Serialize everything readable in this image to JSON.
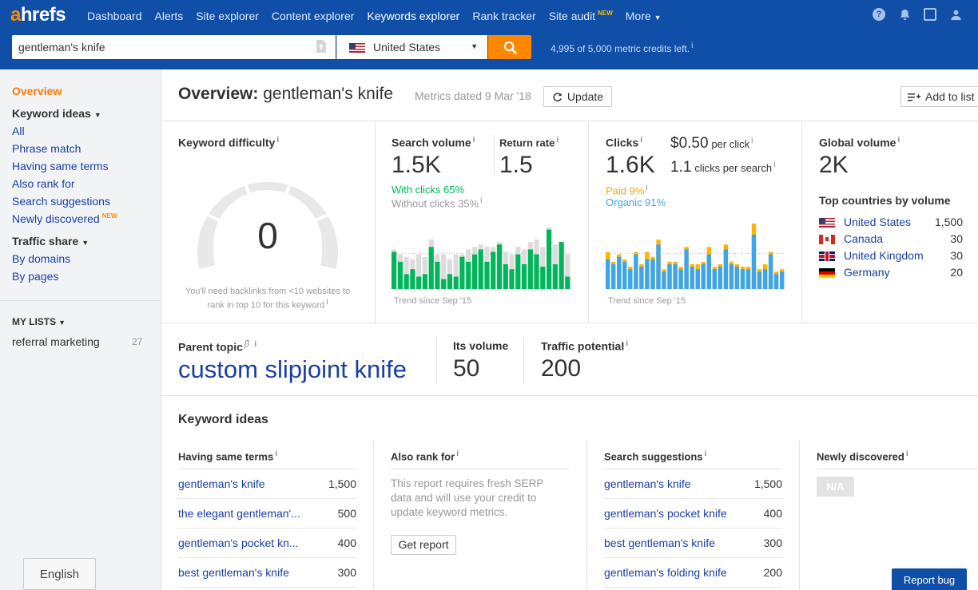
{
  "app": {
    "logo": "ahrefs"
  },
  "nav": {
    "items": [
      {
        "label": "Dashboard"
      },
      {
        "label": "Alerts"
      },
      {
        "label": "Site explorer"
      },
      {
        "label": "Content explorer"
      },
      {
        "label": "Keywords explorer",
        "active": true
      },
      {
        "label": "Rank tracker"
      },
      {
        "label": "Site audit",
        "badge": "NEW"
      },
      {
        "label": "More"
      }
    ],
    "icons": [
      "help-icon",
      "bell-icon",
      "inbox-icon",
      "user-icon"
    ]
  },
  "search": {
    "query": "gentleman's knife",
    "country": "United States",
    "credits": "4,995 of 5,000 metric credits left."
  },
  "sidebar": {
    "overview": "Overview",
    "keyword_ideas_head": "Keyword ideas",
    "keyword_ideas": [
      "All",
      "Phrase match",
      "Having same terms",
      "Also rank for",
      "Search suggestions",
      "Newly discovered"
    ],
    "new_badge": "NEW",
    "traffic_share_head": "Traffic share",
    "traffic_share": [
      "By domains",
      "By pages"
    ],
    "my_lists_head": "MY LISTS",
    "lists": [
      {
        "name": "referral marketing",
        "count": "27"
      }
    ],
    "language": "English"
  },
  "header": {
    "title_prefix": "Overview:",
    "keyword": "gentleman's knife",
    "metrics_date": "Metrics dated 9 Mar '18",
    "update_label": "Update",
    "add_to_list_label": "Add to list"
  },
  "kd": {
    "title": "Keyword difficulty",
    "value": "0",
    "note": "You'll need backlinks from <10 websites to rank in top 10 for this keyword"
  },
  "search_volume": {
    "title": "Search volume",
    "value": "1.5K",
    "return_title": "Return rate",
    "return_value": "1.5",
    "with_clicks": "With clicks 65%",
    "without_clicks": "Without clicks 35%",
    "trend_label": "Trend since Sep '15",
    "trend_with_clicks": [
      0.75,
      0.55,
      0.3,
      0.4,
      0.25,
      0.3,
      0.85,
      0.55,
      0.2,
      0.3,
      0.25,
      0.65,
      0.55,
      0.7,
      0.8,
      0.55,
      0.75,
      0.9,
      0.5,
      0.4,
      0.7,
      0.5,
      0.8,
      0.7,
      0.45,
      1.2,
      0.5,
      0.95,
      0.25
    ],
    "trend_without_clicks": [
      0.8,
      0.7,
      0.65,
      0.6,
      0.7,
      0.65,
      1.0,
      0.7,
      0.7,
      0.6,
      0.7,
      0.7,
      0.8,
      0.85,
      0.9,
      0.85,
      0.85,
      0.95,
      0.75,
      0.7,
      0.85,
      0.8,
      0.95,
      1.0,
      0.85,
      1.25,
      0.9,
      0.95,
      0.7
    ]
  },
  "clicks": {
    "title": "Clicks",
    "value": "1.6K",
    "cpc_value": "$0.50",
    "cpc_label": "per click",
    "cps_value": "1.1",
    "cps_label": "clicks per search",
    "paid": "Paid 9%",
    "organic": "Organic 91%",
    "trend_label": "Trend since Sep '15",
    "trend_organic": [
      0.6,
      0.5,
      0.65,
      0.55,
      0.4,
      0.7,
      0.45,
      0.6,
      0.6,
      0.9,
      0.35,
      0.5,
      0.5,
      0.4,
      0.8,
      0.45,
      0.4,
      0.5,
      0.7,
      0.4,
      0.45,
      0.8,
      0.5,
      0.45,
      0.4,
      0.4,
      1.1,
      0.35,
      0.4,
      0.7,
      0.3,
      0.35
    ],
    "trend_paid": [
      0.15,
      0.05,
      0.05,
      0.05,
      0.05,
      0.05,
      0.05,
      0.15,
      0.05,
      0.1,
      0.05,
      0.05,
      0.05,
      0.05,
      0.05,
      0.05,
      0.1,
      0.05,
      0.15,
      0.05,
      0.05,
      0.1,
      0.05,
      0.05,
      0.05,
      0.05,
      0.25,
      0.05,
      0.1,
      0.05,
      0.05,
      0.05
    ]
  },
  "global": {
    "title": "Global volume",
    "value": "2K",
    "top_countries_title": "Top countries by volume",
    "countries": [
      {
        "name": "United States",
        "volume": "1,500",
        "flag": "us"
      },
      {
        "name": "Canada",
        "volume": "30",
        "flag": "ca"
      },
      {
        "name": "United Kingdom",
        "volume": "30",
        "flag": "uk"
      },
      {
        "name": "Germany",
        "volume": "20",
        "flag": "de"
      }
    ]
  },
  "parent_topic": {
    "title": "Parent topic",
    "beta": "β",
    "value": "custom slipjoint knife",
    "its_volume_title": "Its volume",
    "its_volume": "50",
    "traffic_potential_title": "Traffic potential",
    "traffic_potential": "200"
  },
  "keyword_ideas": {
    "title": "Keyword ideas",
    "having_same_terms": {
      "title": "Having same terms",
      "rows": [
        {
          "kw": "gentleman's knife",
          "vol": "1,500"
        },
        {
          "kw": "the elegant gentleman'...",
          "vol": "500"
        },
        {
          "kw": "gentleman's pocket kn...",
          "vol": "400"
        },
        {
          "kw": "best gentleman's knife",
          "vol": "300"
        }
      ]
    },
    "also_rank_for": {
      "title": "Also rank for",
      "note": "This report requires fresh SERP data and will use your credit to update keyword metrics.",
      "button": "Get report"
    },
    "search_suggestions": {
      "title": "Search suggestions",
      "rows": [
        {
          "kw": "gentleman's knife",
          "vol": "1,500"
        },
        {
          "kw": "gentleman's pocket knife",
          "vol": "400"
        },
        {
          "kw": "best gentleman's knife",
          "vol": "300"
        },
        {
          "kw": "gentleman's folding knife",
          "vol": "200"
        }
      ]
    },
    "newly_discovered": {
      "title": "Newly discovered",
      "badge": "N/A"
    }
  },
  "report_bug": "Report bug",
  "info_mark": "i",
  "colors": {
    "header": "#0f4fa8",
    "accent": "#ff8800",
    "with_clicks": "#00b55a",
    "without_clicks": "#dcdcdc",
    "paid": "#ffb400",
    "organic": "#3ea5e8",
    "link": "#1a3fa6"
  }
}
